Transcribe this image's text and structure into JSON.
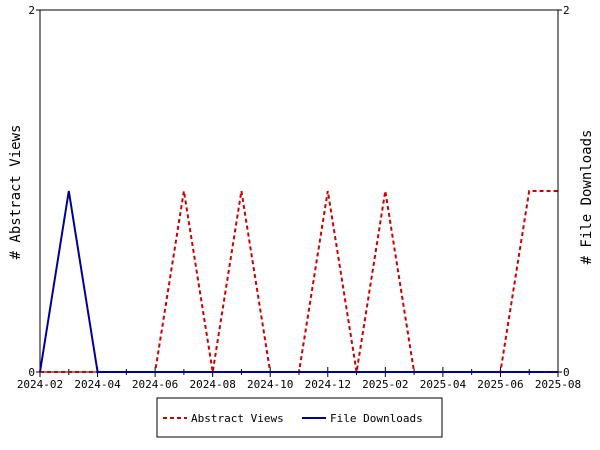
{
  "chart_data": {
    "type": "line",
    "x": [
      "2024-02",
      "2024-03",
      "2024-04",
      "2024-05",
      "2024-06",
      "2024-07",
      "2024-08",
      "2024-09",
      "2024-10",
      "2024-11",
      "2024-12",
      "2025-01",
      "2025-02",
      "2025-03",
      "2025-04",
      "2025-05",
      "2025-06",
      "2025-07",
      "2025-08"
    ],
    "xtick_labels": [
      "2024-02",
      "2024-04",
      "2024-06",
      "2024-08",
      "2024-10",
      "2024-12",
      "2025-02",
      "2025-04",
      "2025-06",
      "2025-08"
    ],
    "series": [
      {
        "name": "Abstract Views",
        "axis": "left",
        "color": "#cc0000",
        "style": "dashed",
        "values": [
          0,
          0,
          0,
          0,
          0,
          1,
          0,
          1,
          0,
          0,
          1,
          0,
          1,
          0,
          0,
          0,
          0,
          1,
          1
        ]
      },
      {
        "name": "File Downloads",
        "axis": "right",
        "color": "#000099",
        "style": "solid",
        "values": [
          0,
          1,
          0,
          0,
          0,
          0,
          0,
          0,
          0,
          0,
          0,
          0,
          0,
          0,
          0,
          0,
          0,
          0,
          0
        ]
      }
    ],
    "ylabel_left": "# Abstract Views",
    "ylabel_right": "# File Downloads",
    "ylim_left": [
      0,
      2
    ],
    "ylim_right": [
      0,
      2
    ],
    "yticks_left": [
      "0",
      "2"
    ],
    "yticks_right": [
      "0",
      "2"
    ],
    "grid": false,
    "legend_placement": "bottom"
  }
}
